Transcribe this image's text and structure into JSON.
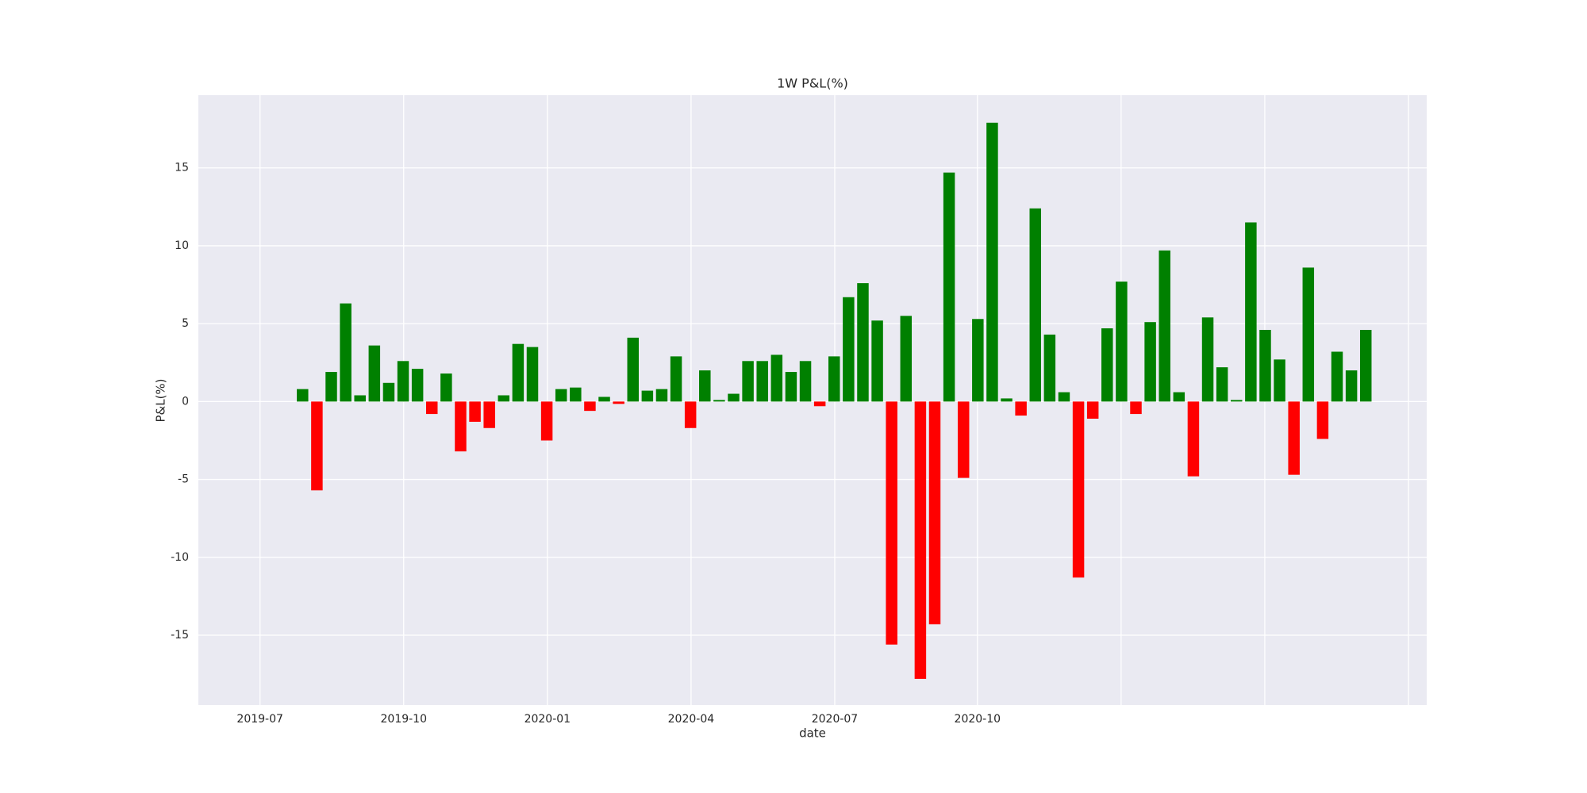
{
  "chart_data": {
    "type": "bar",
    "title": "1W P&L(%)",
    "x_label": "date",
    "y_label": "P&L(%)",
    "categories": [
      null,
      null,
      null,
      null,
      null,
      null,
      null,
      null,
      null,
      null,
      null,
      null,
      null,
      null,
      null,
      null,
      null,
      null,
      null,
      null,
      null,
      null,
      null,
      null,
      null,
      null,
      null,
      null,
      null,
      null,
      null,
      null,
      null,
      null,
      null,
      null,
      null,
      null,
      null,
      null,
      null,
      null,
      null,
      null,
      null,
      null,
      null,
      null,
      null,
      null,
      null,
      null,
      null,
      null,
      null,
      null,
      null,
      null,
      null,
      null,
      null,
      null,
      null,
      null,
      null,
      null,
      null,
      null,
      null,
      null,
      null,
      null,
      null,
      null,
      null
    ],
    "values": [
      0.8,
      -5.7,
      1.9,
      6.3,
      0.4,
      3.6,
      1.2,
      2.6,
      2.1,
      -0.8,
      1.8,
      -3.2,
      -1.3,
      -1.7,
      0.4,
      3.7,
      3.5,
      -2.5,
      0.8,
      0.9,
      -0.6,
      0.3,
      -0.15,
      4.1,
      0.7,
      0.8,
      2.9,
      -1.7,
      2.0,
      0.1,
      0.5,
      2.6,
      2.6,
      3.0,
      1.9,
      2.6,
      -0.3,
      2.9,
      6.7,
      7.6,
      5.2,
      -15.6,
      5.5,
      -17.8,
      -14.3,
      14.7,
      -4.9,
      5.3,
      17.9,
      0.2,
      -0.9,
      12.4,
      4.3,
      0.6,
      -11.3,
      -1.1,
      4.7,
      7.7,
      -0.8,
      5.1,
      9.7,
      0.6,
      -4.8,
      5.4,
      2.2,
      0.1,
      11.5,
      4.6,
      2.7,
      -4.7,
      8.6,
      -2.4,
      3.2,
      2.0,
      4.6
    ],
    "positive_color": "#008000",
    "negative_color": "#ff0000",
    "xlim": [
      -7.25,
      78.24
    ],
    "xticks": [
      {
        "value": -2.96,
        "label": "2019-07"
      },
      {
        "value": 7.04,
        "label": "2019-10"
      },
      {
        "value": 17.04,
        "label": "2020-01"
      },
      {
        "value": 27.04,
        "label": "2020-04"
      },
      {
        "value": 37.04,
        "label": "2020-07"
      },
      {
        "value": 46.97,
        "label": "2020-10"
      },
      {
        "value": 56.97,
        "label": null
      },
      {
        "value": 66.97,
        "label": null
      },
      {
        "value": 76.97,
        "label": null
      }
    ],
    "ylim": [
      -19.48,
      19.67
    ],
    "yticks": [
      -15,
      -10,
      -5,
      0,
      5,
      10,
      15
    ],
    "grid": true
  }
}
